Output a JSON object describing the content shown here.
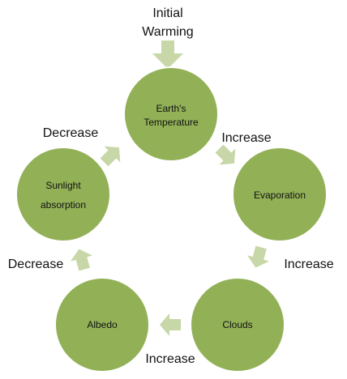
{
  "colors": {
    "node_fill": "#92b157",
    "node_stroke": "#ffffff",
    "arrow_fill": "#c7d7a8",
    "text": "#111111"
  },
  "start_label": [
    "Initial",
    "Warming"
  ],
  "nodes": [
    {
      "id": "earths-temperature",
      "lines": [
        "Earth's",
        "Temperature"
      ]
    },
    {
      "id": "evaporation",
      "lines": [
        "Evaporation"
      ]
    },
    {
      "id": "clouds",
      "lines": [
        "Clouds"
      ]
    },
    {
      "id": "albedo",
      "lines": [
        "Albedo"
      ]
    },
    {
      "id": "sunlight-absorption",
      "lines": [
        "Sunlight",
        "absorption"
      ]
    }
  ],
  "edge_labels": {
    "temperature_to_evaporation": "Increase",
    "evaporation_to_clouds": "Increase",
    "clouds_to_albedo": "Increase",
    "albedo_to_sunlight": "Decrease",
    "sunlight_to_temperature": "Decrease"
  }
}
